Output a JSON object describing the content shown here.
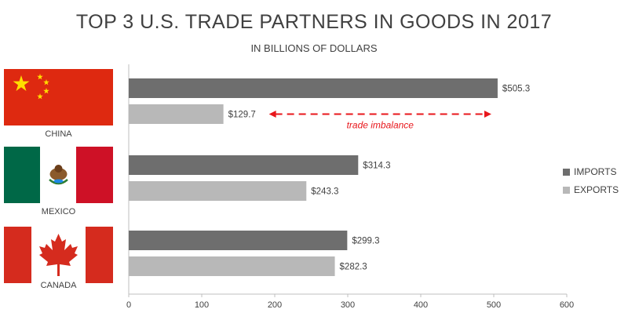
{
  "title": "TOP 3 U.S. TRADE PARTNERS IN GOODS IN 2017",
  "subtitle": "IN BILLIONS OF DOLLARS",
  "colors": {
    "imports": "#6e6e6e",
    "exports": "#b8b8b8",
    "annotation": "#e8161b",
    "axis": "#bfbfbf"
  },
  "legend": {
    "imports": "IMPORTS",
    "exports": "EXPORTS"
  },
  "flags": [
    {
      "country": "CHINA",
      "icon": "china-flag-icon"
    },
    {
      "country": "MEXICO",
      "icon": "mexico-flag-icon"
    },
    {
      "country": "CANADA",
      "icon": "canada-flag-icon"
    }
  ],
  "annotation": {
    "text": "trade imbalance",
    "category": "CHINA"
  },
  "chart_data": {
    "type": "bar",
    "orientation": "horizontal",
    "categories": [
      "CHINA",
      "MEXICO",
      "CANADA"
    ],
    "series": [
      {
        "name": "IMPORTS",
        "values": [
          505.3,
          314.3,
          299.3
        ],
        "labels": [
          "$505.3",
          "$314.3",
          "$299.3"
        ]
      },
      {
        "name": "EXPORTS",
        "values": [
          129.7,
          243.3,
          282.3
        ],
        "labels": [
          "$129.7",
          "$243.3",
          "$282.3"
        ]
      }
    ],
    "xlim": [
      0,
      600
    ],
    "xticks": [
      0,
      100,
      200,
      300,
      400,
      500,
      600
    ],
    "legend_position": "right",
    "grid": false
  }
}
